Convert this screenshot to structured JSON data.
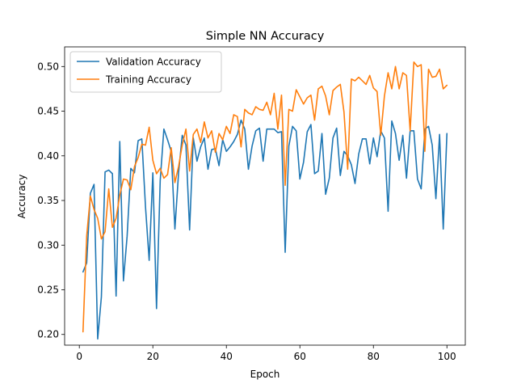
{
  "chart_data": {
    "type": "line",
    "title": "Simple NN Accuracy",
    "xlabel": "Epoch",
    "ylabel": "Accuracy",
    "xlim": [
      -4,
      105
    ],
    "ylim": [
      0.188,
      0.522
    ],
    "xticks": [
      0,
      20,
      40,
      60,
      80,
      100
    ],
    "yticks": [
      0.2,
      0.25,
      0.3,
      0.35,
      0.4,
      0.45,
      0.5
    ],
    "ytick_labels": [
      "0.20",
      "0.25",
      "0.30",
      "0.35",
      "0.40",
      "0.45",
      "0.50"
    ],
    "grid": false,
    "legend_position": "top-left",
    "x": [
      1,
      2,
      3,
      4,
      5,
      6,
      7,
      8,
      9,
      10,
      11,
      12,
      13,
      14,
      15,
      16,
      17,
      18,
      19,
      20,
      21,
      22,
      23,
      24,
      25,
      26,
      27,
      28,
      29,
      30,
      31,
      32,
      33,
      34,
      35,
      36,
      37,
      38,
      39,
      40,
      41,
      42,
      43,
      44,
      45,
      46,
      47,
      48,
      49,
      50,
      51,
      52,
      53,
      54,
      55,
      56,
      57,
      58,
      59,
      60,
      61,
      62,
      63,
      64,
      65,
      66,
      67,
      68,
      69,
      70,
      71,
      72,
      73,
      74,
      75,
      76,
      77,
      78,
      79,
      80,
      81,
      82,
      83,
      84,
      85,
      86,
      87,
      88,
      89,
      90,
      91,
      92,
      93,
      94,
      95,
      96,
      97,
      98,
      99,
      100
    ],
    "series": [
      {
        "name": "Validation Accuracy",
        "color": "#1f77b4",
        "values": [
          0.27,
          0.28,
          0.358,
          0.368,
          0.195,
          0.242,
          0.382,
          0.384,
          0.38,
          0.243,
          0.416,
          0.26,
          0.31,
          0.386,
          0.381,
          0.417,
          0.419,
          0.343,
          0.283,
          0.381,
          0.229,
          0.372,
          0.43,
          0.418,
          0.405,
          0.318,
          0.381,
          0.423,
          0.412,
          0.317,
          0.42,
          0.394,
          0.41,
          0.42,
          0.385,
          0.407,
          0.408,
          0.389,
          0.418,
          0.405,
          0.41,
          0.416,
          0.424,
          0.44,
          0.43,
          0.385,
          0.411,
          0.428,
          0.431,
          0.394,
          0.43,
          0.43,
          0.43,
          0.426,
          0.427,
          0.292,
          0.411,
          0.433,
          0.428,
          0.374,
          0.393,
          0.427,
          0.435,
          0.38,
          0.383,
          0.425,
          0.357,
          0.375,
          0.42,
          0.431,
          0.378,
          0.405,
          0.4,
          0.39,
          0.369,
          0.402,
          0.419,
          0.419,
          0.391,
          0.42,
          0.399,
          0.428,
          0.42,
          0.338,
          0.439,
          0.425,
          0.395,
          0.423,
          0.375,
          0.428,
          0.428,
          0.374,
          0.363,
          0.43,
          0.433,
          0.412,
          0.352,
          0.424,
          0.318,
          0.425
        ]
      },
      {
        "name": "Training Accuracy",
        "color": "#ff7f0e",
        "values": [
          0.203,
          0.31,
          0.355,
          0.34,
          0.33,
          0.307,
          0.315,
          0.363,
          0.32,
          0.33,
          0.356,
          0.374,
          0.373,
          0.362,
          0.388,
          0.398,
          0.413,
          0.412,
          0.432,
          0.395,
          0.38,
          0.386,
          0.375,
          0.379,
          0.409,
          0.37,
          0.388,
          0.412,
          0.43,
          0.383,
          0.424,
          0.43,
          0.415,
          0.438,
          0.42,
          0.428,
          0.404,
          0.425,
          0.418,
          0.433,
          0.425,
          0.446,
          0.444,
          0.41,
          0.452,
          0.448,
          0.446,
          0.455,
          0.452,
          0.451,
          0.46,
          0.446,
          0.47,
          0.43,
          0.468,
          0.367,
          0.452,
          0.45,
          0.474,
          0.466,
          0.458,
          0.465,
          0.468,
          0.44,
          0.475,
          0.478,
          0.467,
          0.446,
          0.473,
          0.477,
          0.48,
          0.449,
          0.385,
          0.486,
          0.484,
          0.488,
          0.484,
          0.48,
          0.49,
          0.476,
          0.472,
          0.423,
          0.467,
          0.493,
          0.475,
          0.5,
          0.475,
          0.493,
          0.49,
          0.428,
          0.505,
          0.5,
          0.502,
          0.405,
          0.497,
          0.488,
          0.489,
          0.497,
          0.475,
          0.479
        ]
      }
    ]
  }
}
